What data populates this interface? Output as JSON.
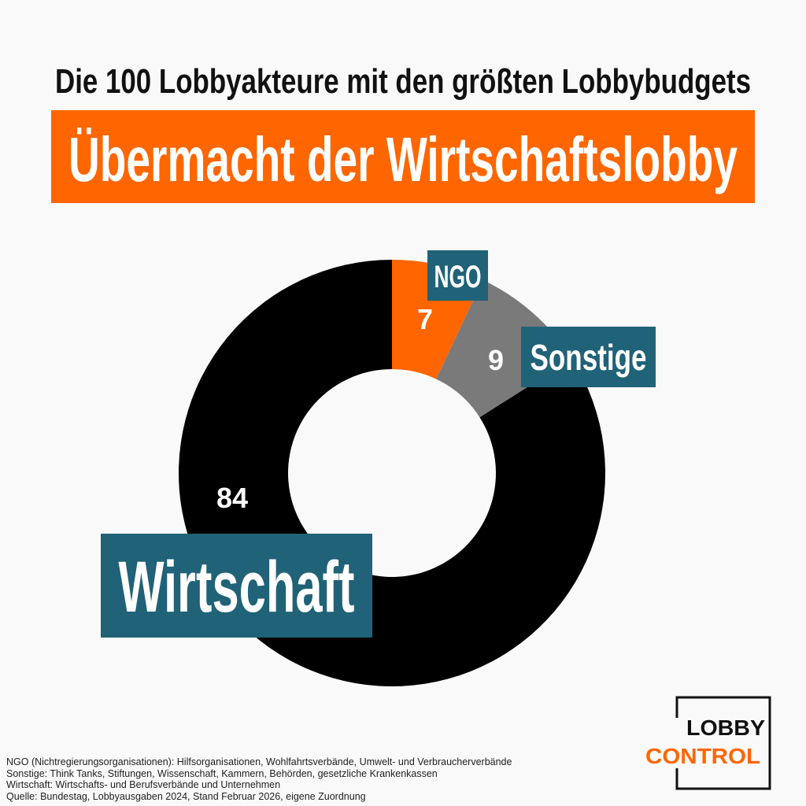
{
  "title": "Die 100 Lobbyakteure mit den größten Lobbybudgets",
  "banner": "Übermacht der Wirtschaftslobby",
  "chart_data": {
    "type": "pie",
    "donut": true,
    "categories": [
      "NGO",
      "Sonstige",
      "Wirtschaft"
    ],
    "values": [
      7,
      9,
      84
    ],
    "value_labels": [
      "7",
      "9",
      "84"
    ],
    "colors": [
      "#ff6600",
      "#7a7a7a",
      "#000000"
    ],
    "label_box_color": "#206277",
    "start": "top",
    "direction": "clockwise"
  },
  "notes": [
    "NGO (Nichtregierungsorganisationen): Hilfsorganisationen, Wohlfahrtsverbände, Umwelt- und Verbraucherverbände",
    "Sonstige: Think Tanks, Stiftungen, Wissenschaft, Kammern, Behörden, gesetzliche Krankenkassen",
    "Wirtschaft: Wirtschafts- und Berufsverbände und Unternehmen",
    "Quelle: Bundestag, Lobbyausgaben 2024, Stand Februar 2026, eigene Zuordnung"
  ],
  "logo": {
    "line1": "LOBBY",
    "line2": "CONTROL"
  }
}
